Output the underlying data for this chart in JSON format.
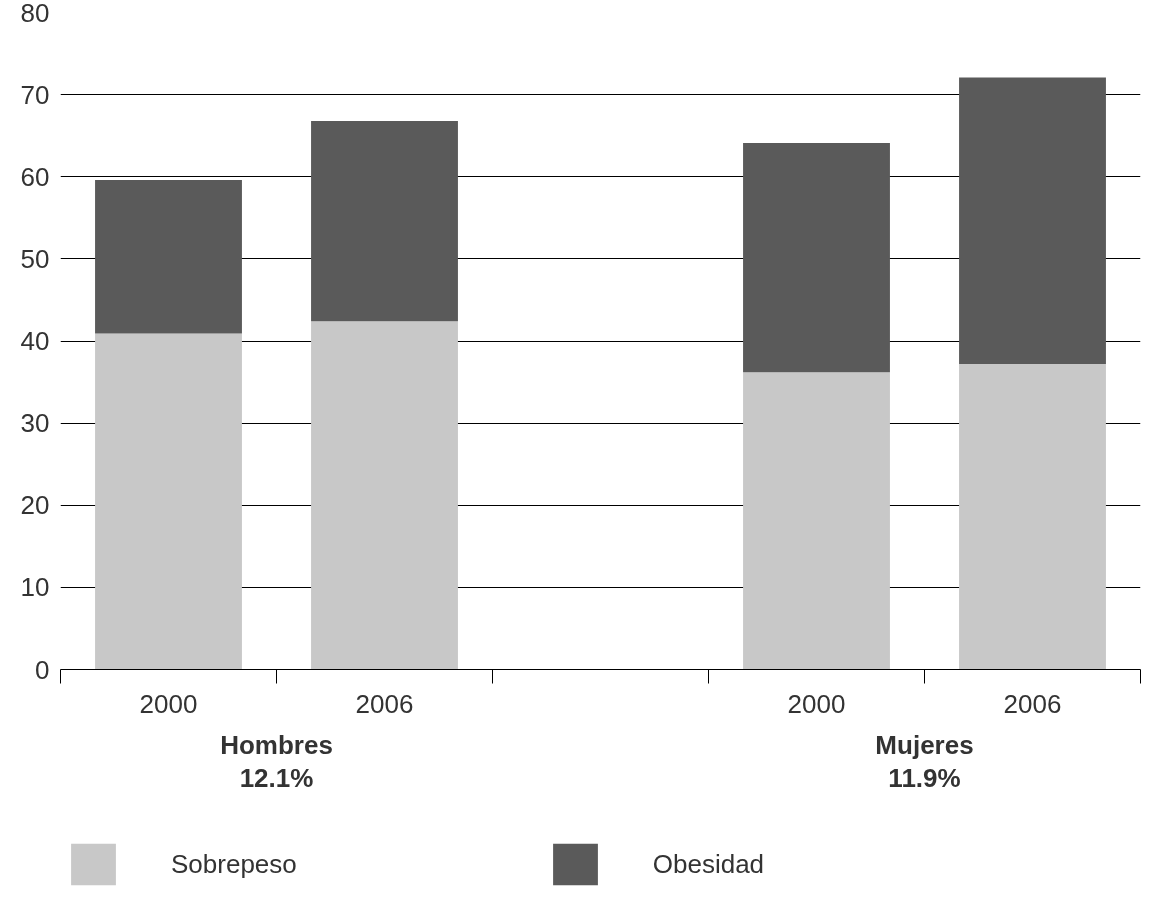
{
  "chart_data": {
    "type": "bar",
    "stacked": true,
    "categories": [
      "2000",
      "2006",
      null,
      "2000",
      "2006"
    ],
    "series": [
      {
        "name": "Sobrepeso",
        "color": "#c8c8c8",
        "values": [
          40.9,
          42.4,
          null,
          36.2,
          37.2
        ]
      },
      {
        "name": "Obesidad",
        "color": "#5a5a5a",
        "values": [
          18.7,
          24.4,
          null,
          27.9,
          34.9
        ]
      }
    ],
    "ylim": [
      0,
      80
    ],
    "yticks": [
      0,
      10,
      20,
      30,
      40,
      50,
      60,
      70,
      80
    ],
    "grid": "y",
    "legend": "bottom",
    "annotations": [
      "Hombres\n12.1%",
      "Mujeres\n11.9%"
    ]
  }
}
